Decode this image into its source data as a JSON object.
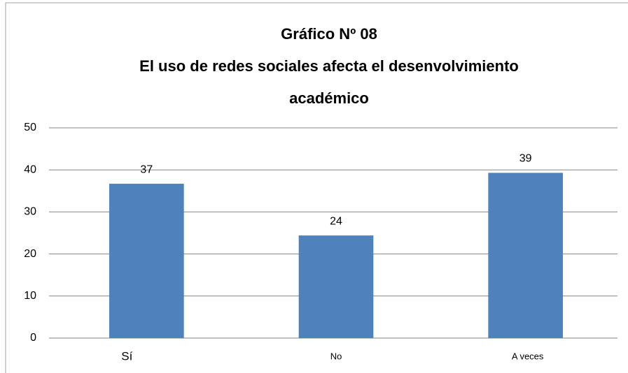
{
  "chart_data": {
    "type": "bar",
    "title": [
      "Gráfico Nº 08",
      "El uso de redes sociales afecta el desenvolvimiento",
      "académico"
    ],
    "categories": [
      "Sí",
      "No",
      "A veces"
    ],
    "values": [
      36.7,
      24.4,
      39.3
    ],
    "value_labels": [
      "37",
      "24",
      "39"
    ],
    "color": "#4f81bd",
    "ylim": [
      0,
      50
    ],
    "yticks": [
      0,
      10,
      20,
      30,
      40,
      50
    ],
    "grid": true
  }
}
